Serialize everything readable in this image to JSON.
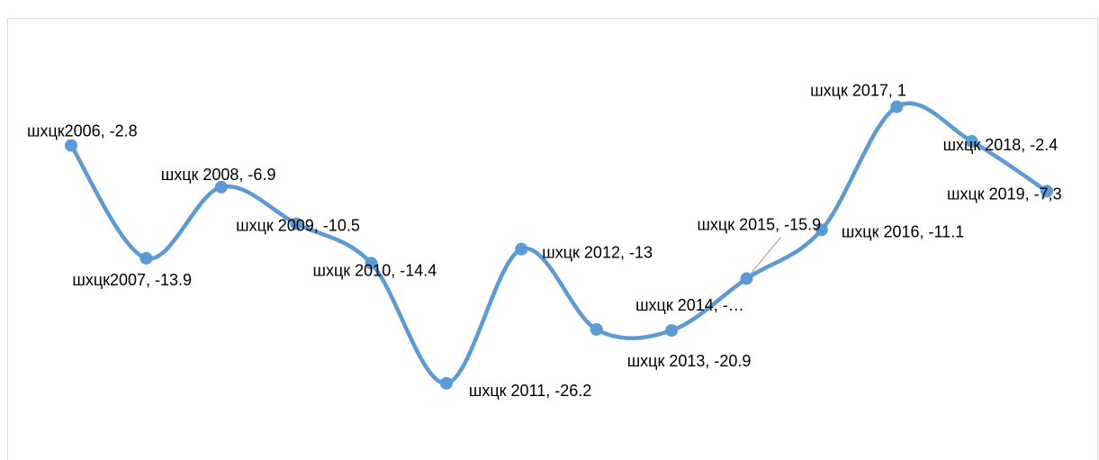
{
  "chart_data": {
    "type": "line",
    "values": [
      -2.8,
      -13.9,
      -6.9,
      -10.5,
      -14.4,
      -26.2,
      -13,
      -20.9,
      -21,
      -15.9,
      -11.1,
      1,
      -2.4,
      -7.3
    ],
    "value_labels": [
      "шхцк2006, -2.8",
      "шхцк2007, -13.9",
      "шхцк 2008, -6.9",
      "шхцк 2009, -10.5",
      "шхцк 2010, -14.4",
      "шхцк 2011, -26.2",
      "шхцк 2012, -13",
      "шхцк 2013, -20.9",
      "шхцк 2014, -…",
      "шхцк 2015, -15.9",
      "шхцк 2016, -11.1",
      "шхцк 2017, 1",
      "шхцк 2018, -2.4",
      "шхцк 2019, -7,3"
    ],
    "color": "#5b9bd5",
    "ylim": [
      -30,
      5
    ]
  }
}
